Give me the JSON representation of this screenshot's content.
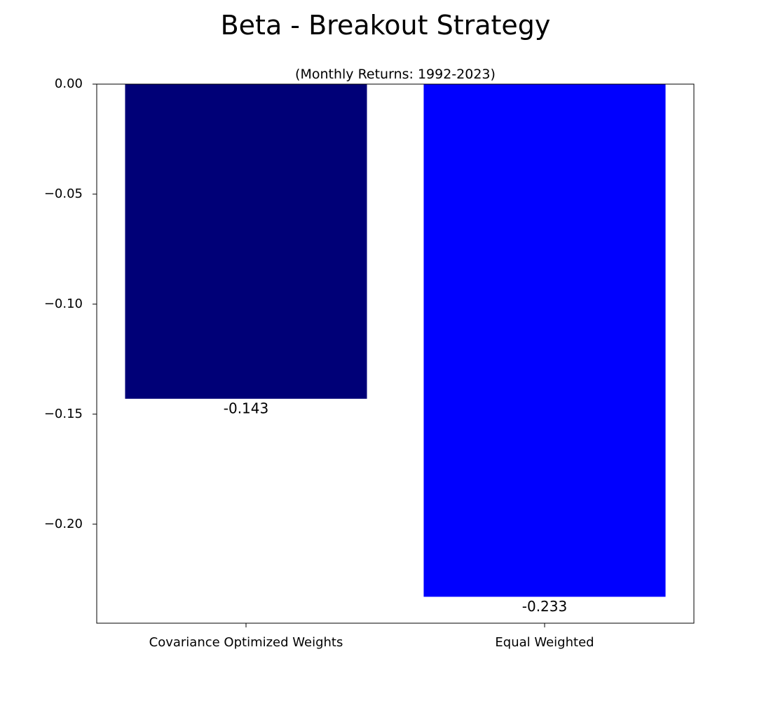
{
  "chart_data": {
    "type": "bar",
    "title": "Beta - Breakout Strategy",
    "subtitle": "(Monthly Returns: 1992-2023)",
    "categories": [
      "Covariance Optimized Weights",
      "Equal Weighted"
    ],
    "values": [
      -0.143,
      -0.233
    ],
    "value_labels": [
      "-0.143",
      "-0.233"
    ],
    "bar_colors": [
      "#000077",
      "#0000ff"
    ],
    "ylim": [
      -0.245,
      0.0
    ],
    "yticks": [
      0.0,
      -0.05,
      -0.1,
      -0.15,
      -0.2
    ],
    "ytick_labels": [
      "0.00",
      "−0.05",
      "−0.10",
      "−0.15",
      "−0.20"
    ],
    "xlabel": "",
    "ylabel": "",
    "grid": false,
    "legend": "none"
  }
}
